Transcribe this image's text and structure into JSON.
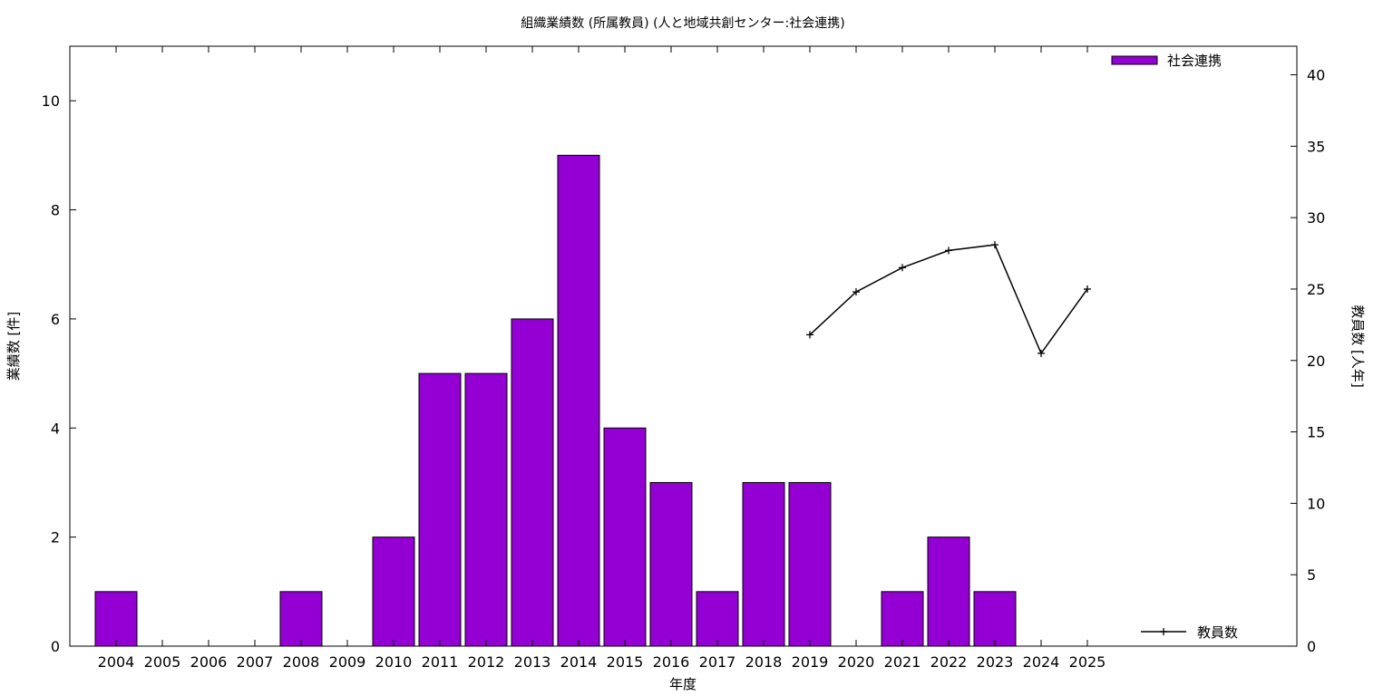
{
  "chart_data": {
    "type": "bar",
    "title": "組織業績数 (所属教員) (人と地域共創センター:社会連携)",
    "xlabel": "年度",
    "ylabel": "業績数 [件]",
    "y2label": "教員数 [人年]",
    "categories": [
      "2004",
      "2005",
      "2006",
      "2007",
      "2008",
      "2009",
      "2010",
      "2011",
      "2012",
      "2013",
      "2014",
      "2015",
      "2016",
      "2017",
      "2018",
      "2019",
      "2020",
      "2021",
      "2022",
      "2023",
      "2024",
      "2025"
    ],
    "series": [
      {
        "name": "社会連携",
        "type": "bar",
        "axis": "left",
        "color": "#9400d3",
        "values": [
          1,
          0,
          0,
          0,
          1,
          0,
          2,
          5,
          5,
          6,
          9,
          4,
          3,
          1,
          3,
          3,
          0,
          1,
          2,
          1,
          0,
          0
        ]
      },
      {
        "name": "教員数",
        "type": "line",
        "axis": "right",
        "color": "#000000",
        "x": [
          "2019",
          "2020",
          "2021",
          "2022",
          "2023",
          "2024",
          "2025"
        ],
        "values": [
          21.8,
          24.8,
          26.5,
          27.7,
          28.1,
          20.5,
          25.0
        ]
      }
    ],
    "ylim": [
      0,
      11
    ],
    "y_ticks": [
      0,
      2,
      4,
      6,
      8,
      10
    ],
    "y2lim": [
      0,
      42
    ],
    "y2_ticks": [
      0,
      5,
      10,
      15,
      20,
      25,
      30,
      35,
      40
    ],
    "grid": false,
    "legend": [
      "top-right",
      "bottom-right"
    ]
  }
}
